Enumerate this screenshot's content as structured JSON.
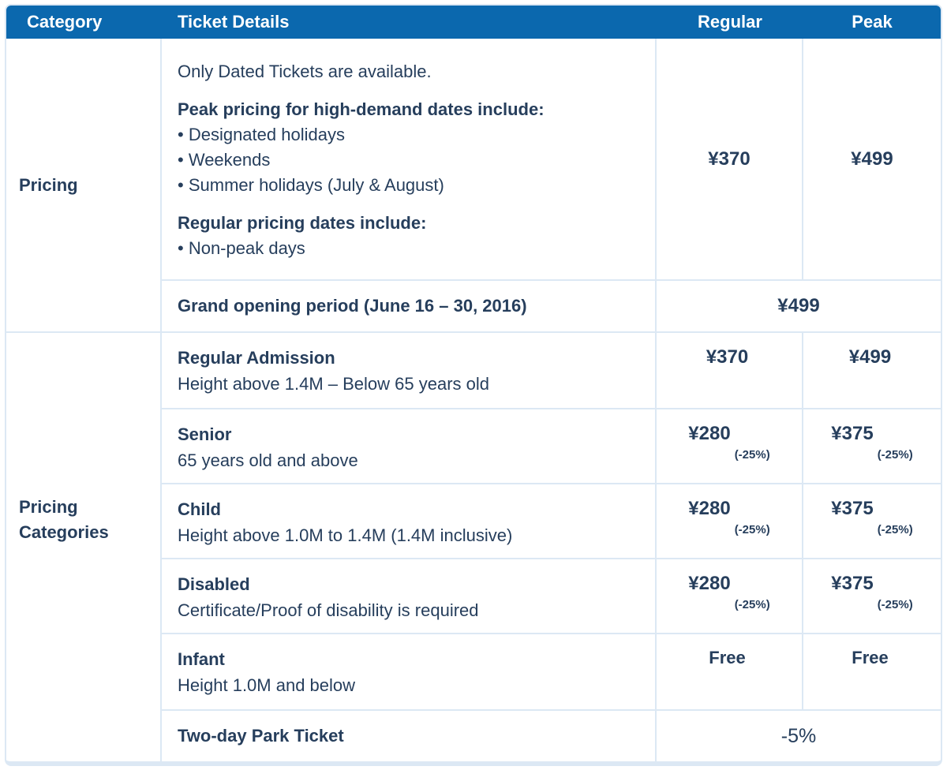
{
  "table": {
    "colors": {
      "header_bg": "#0b68ae",
      "header_text": "#ffffff",
      "body_text": "#263e5c",
      "border": "#dce8f4"
    },
    "header": {
      "category": "Category",
      "ticket_details": "Ticket Details",
      "regular": "Regular",
      "peak": "Peak"
    },
    "pricing_section": {
      "category": "Pricing",
      "details": {
        "intro": "Only Dated Tickets are available.",
        "peak_heading": "Peak pricing for high-demand dates include:",
        "peak_bullets": [
          "Designated holidays",
          "Weekends",
          "Summer holidays (July & August)"
        ],
        "regular_heading": "Regular pricing dates include:",
        "regular_bullets": [
          "Non-peak days"
        ]
      },
      "regular_price": "¥370",
      "peak_price": "¥499",
      "grand_opening": {
        "label": "Grand opening period (June 16 – 30, 2016)",
        "price": "¥499"
      }
    },
    "categories_section": {
      "category": "Pricing Categories",
      "rows": [
        {
          "title": "Regular Admission",
          "subtitle": "Height above 1.4M – Below 65 years old",
          "regular": "¥370",
          "regular_note": "",
          "peak": "¥499",
          "peak_note": ""
        },
        {
          "title": "Senior",
          "subtitle": "65 years old and above",
          "regular": "¥280",
          "regular_note": "(-25%)",
          "peak": "¥375",
          "peak_note": "(-25%)"
        },
        {
          "title": "Child",
          "subtitle": "Height above 1.0M to 1.4M (1.4M inclusive)",
          "regular": "¥280",
          "regular_note": "(-25%)",
          "peak": "¥375",
          "peak_note": "(-25%)"
        },
        {
          "title": "Disabled",
          "subtitle": "Certificate/Proof of disability is required",
          "regular": "¥280",
          "regular_note": "(-25%)",
          "peak": "¥375",
          "peak_note": "(-25%)"
        },
        {
          "title": "Infant",
          "subtitle": "Height 1.0M and below",
          "regular": "Free",
          "regular_note": "",
          "peak": "Free",
          "peak_note": ""
        }
      ],
      "two_day": {
        "label": "Two-day Park Ticket",
        "price": "-5%"
      }
    }
  }
}
